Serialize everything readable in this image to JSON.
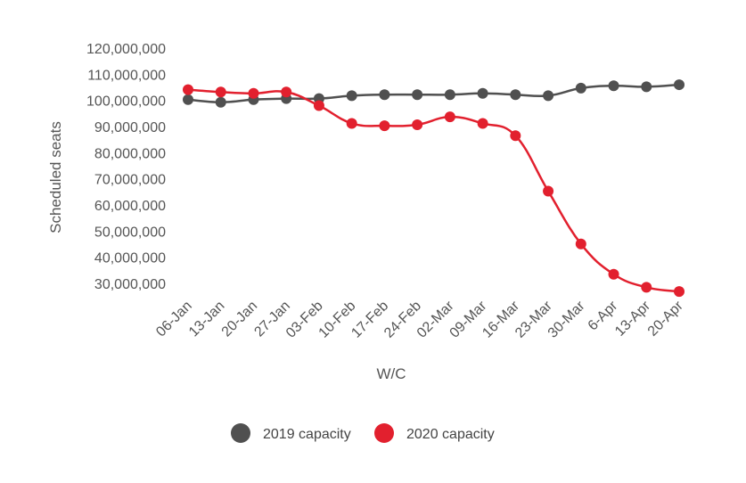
{
  "chart_data": {
    "type": "line",
    "title": "",
    "xlabel": "W/C",
    "ylabel": "Scheduled seats",
    "ylim": [
      25000000,
      120000000
    ],
    "yticks": [
      30000000,
      40000000,
      50000000,
      60000000,
      70000000,
      80000000,
      90000000,
      100000000,
      110000000,
      120000000
    ],
    "ytick_labels": [
      "30,000,000",
      "40,000,000",
      "50,000,000",
      "60,000,000",
      "70,000,000",
      "80,000,000",
      "90,000,000",
      "100,000,000",
      "110,000,000",
      "120,000,000"
    ],
    "categories": [
      "06-Jan",
      "13-Jan",
      "20-Jan",
      "27-Jan",
      "03-Feb",
      "10-Feb",
      "17-Feb",
      "24-Feb",
      "02-Mar",
      "09-Mar",
      "16-Mar",
      "23-Mar",
      "30-Mar",
      "6-Apr",
      "13-Apr",
      "20-Apr"
    ],
    "legend_position": "bottom",
    "series": [
      {
        "name": "2019 capacity",
        "color": "#505050",
        "values": [
          100300000,
          99300000,
          100300000,
          100700000,
          100700000,
          101800000,
          102200000,
          102200000,
          102200000,
          102700000,
          102200000,
          101800000,
          104700000,
          105600000,
          105200000,
          106000000
        ]
      },
      {
        "name": "2020 capacity",
        "color": "#e2202e",
        "values": [
          104100000,
          103200000,
          102700000,
          103200000,
          98000000,
          91200000,
          90300000,
          90700000,
          93700000,
          91200000,
          86500000,
          65300000,
          45100000,
          33500000,
          28500000,
          26900000
        ]
      }
    ]
  }
}
